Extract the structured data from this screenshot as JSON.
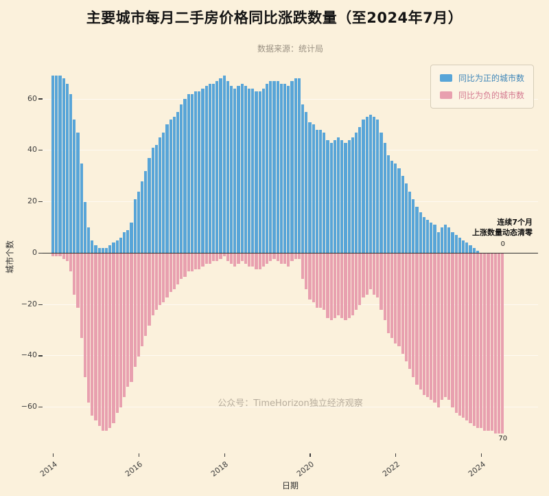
{
  "title": "主要城市每月二手房价格同比涨跌数量（至2024年7月）",
  "subtitle": "数据来源：统计局",
  "watermark": "公众号：TimeHorizon独立经济观察",
  "annotation": {
    "line1": "连续7个月",
    "line2": "上涨数量动态清零",
    "zero_label": "0",
    "end_label": "70"
  },
  "legend": [
    {
      "label": "同比为正的城市数",
      "color": "#58a5d8",
      "text_color": "#3d85b8"
    },
    {
      "label": "同比为负的城市数",
      "color": "#e8a0af",
      "text_color": "#d4798f"
    }
  ],
  "colors": {
    "background": "#fbf1dc",
    "positive_bar": "#58a5d8",
    "negative_bar": "#e8a0af",
    "zero_line": "#2f2f2f"
  },
  "chart_data": {
    "type": "bar",
    "title": "主要城市每月二手房价格同比涨跌数量（至2024年7月）",
    "xlabel": "日期",
    "ylabel": "城市个数",
    "x_start": "2014-01",
    "x_end": "2024-07",
    "frequency": "monthly",
    "ylim": [
      -78,
      75
    ],
    "yticks": [
      -60,
      -40,
      -20,
      0,
      20,
      40,
      60
    ],
    "xticks": [
      {
        "label": "2014",
        "index": 0
      },
      {
        "label": "2016",
        "index": 24
      },
      {
        "label": "2018",
        "index": 48
      },
      {
        "label": "2020",
        "index": 72
      },
      {
        "label": "2022",
        "index": 96
      },
      {
        "label": "2024",
        "index": 120
      }
    ],
    "series": [
      {
        "name": "同比为正的城市数",
        "color": "#58a5d8",
        "values": [
          69,
          69,
          69,
          68,
          66,
          62,
          52,
          47,
          35,
          20,
          10,
          5,
          3,
          2,
          2,
          2,
          3,
          4,
          5,
          6,
          8,
          9,
          12,
          21,
          24,
          28,
          32,
          37,
          41,
          42,
          45,
          47,
          50,
          52,
          53,
          55,
          58,
          60,
          62,
          62,
          63,
          63,
          64,
          65,
          66,
          66,
          67,
          68,
          69,
          67,
          65,
          64,
          65,
          66,
          65,
          64,
          64,
          63,
          63,
          64,
          66,
          67,
          67,
          67,
          66,
          66,
          65,
          67,
          68,
          68,
          58,
          55,
          51,
          50,
          48,
          48,
          47,
          44,
          43,
          44,
          45,
          44,
          43,
          44,
          45,
          47,
          49,
          52,
          53,
          54,
          53,
          52,
          47,
          43,
          38,
          36,
          35,
          33,
          30,
          27,
          24,
          21,
          18,
          16,
          14,
          13,
          12,
          11,
          8,
          10,
          11,
          10,
          8,
          7,
          6,
          5,
          4,
          3,
          2,
          1,
          0,
          0,
          0,
          0,
          0,
          0,
          0
        ]
      },
      {
        "name": "同比为负的城市数",
        "color": "#e8a0af",
        "values": [
          -1,
          -1,
          -1,
          -2,
          -3,
          -7,
          -16,
          -21,
          -33,
          -48,
          -58,
          -63,
          -65,
          -67,
          -69,
          -69,
          -68,
          -66,
          -62,
          -60,
          -56,
          -52,
          -50,
          -44,
          -40,
          -36,
          -32,
          -28,
          -24,
          -22,
          -20,
          -19,
          -17,
          -15,
          -14,
          -12,
          -10,
          -9,
          -7,
          -7,
          -6,
          -6,
          -5,
          -4,
          -4,
          -3,
          -3,
          -2,
          -1,
          -3,
          -4,
          -5,
          -4,
          -3,
          -4,
          -5,
          -5,
          -6,
          -6,
          -5,
          -4,
          -3,
          -2,
          -3,
          -4,
          -4,
          -5,
          -3,
          -2,
          -2,
          -10,
          -14,
          -18,
          -19,
          -21,
          -21,
          -22,
          -25,
          -26,
          -25,
          -24,
          -25,
          -26,
          -25,
          -24,
          -22,
          -20,
          -17,
          -16,
          -14,
          -16,
          -17,
          -22,
          -26,
          -31,
          -33,
          -35,
          -36,
          -39,
          -42,
          -45,
          -48,
          -51,
          -53,
          -55,
          -56,
          -57,
          -58,
          -60,
          -57,
          -56,
          -57,
          -60,
          -62,
          -63,
          -64,
          -65,
          -66,
          -67,
          -68,
          -68,
          -69,
          -69,
          -69,
          -70,
          -70,
          -70
        ]
      }
    ]
  }
}
